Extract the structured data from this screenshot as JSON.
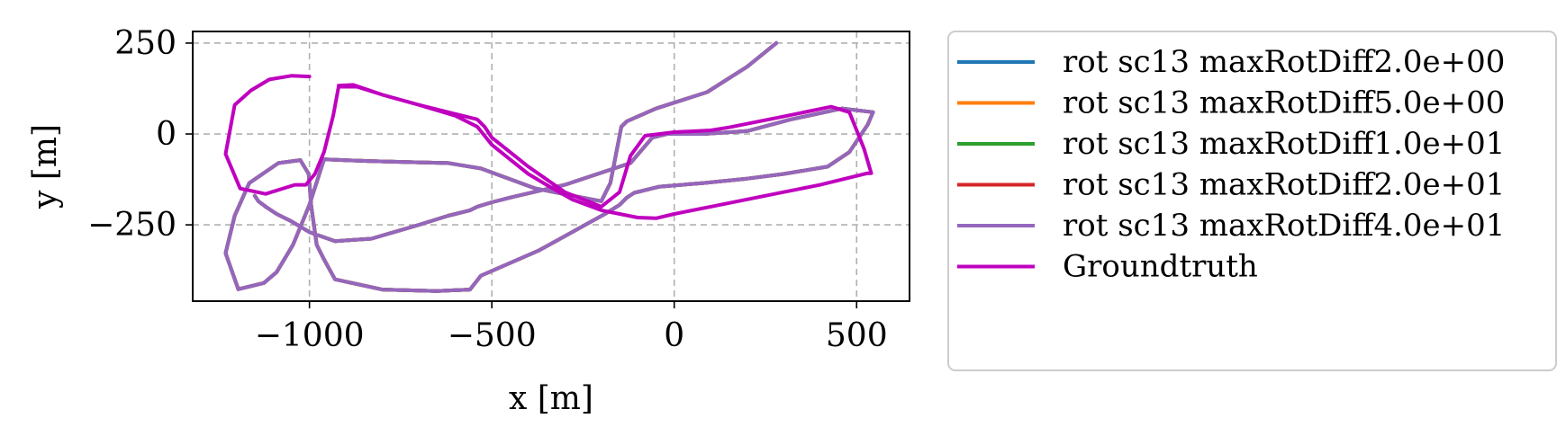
{
  "chart_data": {
    "type": "line",
    "xlabel": "x [m]",
    "ylabel": "y [m]",
    "xlim": [
      -1320,
      645
    ],
    "ylim": [
      -460,
      282
    ],
    "xticks": [
      -1000,
      -500,
      0,
      500
    ],
    "xtick_labels": [
      "−1000",
      "−500",
      "0",
      "500"
    ],
    "yticks": [
      250,
      0,
      -250
    ],
    "ytick_labels": [
      "250",
      "0",
      "−250"
    ],
    "grid": true,
    "grid_style": "dashed",
    "legend_placement": "outside-right",
    "series": [
      {
        "name": "rot sc13 maxRotDiff2.0e+00",
        "color": "#1f77b4",
        "x": [
          280,
          200,
          90,
          -50,
          -130,
          -145,
          -175,
          -200,
          -380,
          -530,
          -620,
          -700,
          -830,
          -960,
          -1000,
          -1045,
          -1090,
          -1125,
          -1195,
          -1230,
          -1205,
          -1165,
          -1085,
          -1025,
          -1002,
          -995,
          -980,
          -960,
          -930,
          -800,
          -650,
          -560,
          -530,
          -370,
          -280,
          -190,
          -150,
          -130,
          -110,
          -40,
          80,
          200,
          300,
          420,
          480,
          510,
          530,
          545,
          460,
          320,
          200,
          80,
          -20,
          -60,
          -120,
          -300,
          -450,
          -500,
          -540,
          -560,
          -620,
          -700,
          -830,
          -930,
          -1000,
          -1050,
          -1090,
          -1120,
          -1140,
          -1150
        ],
        "y": [
          250,
          185,
          115,
          70,
          35,
          20,
          -135,
          -185,
          -150,
          -95,
          -80,
          -78,
          -75,
          -70,
          -195,
          -305,
          -380,
          -410,
          -427,
          -328,
          -225,
          -135,
          -80,
          -72,
          -110,
          -200,
          -305,
          -345,
          -400,
          -428,
          -432,
          -428,
          -390,
          -320,
          -270,
          -220,
          -195,
          -175,
          -162,
          -145,
          -135,
          -123,
          -110,
          -90,
          -50,
          -5,
          25,
          60,
          70,
          40,
          8,
          0,
          0,
          -10,
          -80,
          -140,
          -175,
          -188,
          -200,
          -210,
          -225,
          -250,
          -288,
          -295,
          -270,
          -240,
          -220,
          -200,
          -185,
          -170
        ]
      },
      {
        "name": "rot sc13 maxRotDiff5.0e+00",
        "color": "#ff7f0e",
        "x": [
          280,
          200,
          90,
          -50,
          -130,
          -145,
          -175,
          -200,
          -380,
          -530,
          -620,
          -700,
          -830,
          -960,
          -1000,
          -1045,
          -1090,
          -1125,
          -1195,
          -1230,
          -1205,
          -1165,
          -1085,
          -1025,
          -1002,
          -995,
          -980,
          -960,
          -930,
          -800,
          -650,
          -560,
          -530,
          -370,
          -280,
          -190,
          -150,
          -130,
          -110,
          -40,
          80,
          200,
          300,
          420,
          480,
          510,
          530,
          545,
          460,
          320,
          200,
          80,
          -20,
          -60,
          -120,
          -300,
          -450,
          -500,
          -540,
          -560,
          -620,
          -700,
          -830,
          -930,
          -1000,
          -1050,
          -1090,
          -1120,
          -1140,
          -1150
        ],
        "y": [
          250,
          185,
          115,
          70,
          35,
          20,
          -135,
          -185,
          -150,
          -95,
          -80,
          -78,
          -75,
          -70,
          -195,
          -305,
          -380,
          -410,
          -427,
          -328,
          -225,
          -135,
          -80,
          -72,
          -110,
          -200,
          -305,
          -345,
          -400,
          -428,
          -432,
          -428,
          -390,
          -320,
          -270,
          -220,
          -195,
          -175,
          -162,
          -145,
          -135,
          -123,
          -110,
          -90,
          -50,
          -5,
          25,
          60,
          70,
          40,
          8,
          0,
          0,
          -10,
          -80,
          -140,
          -175,
          -188,
          -200,
          -210,
          -225,
          -250,
          -288,
          -295,
          -270,
          -240,
          -220,
          -200,
          -185,
          -170
        ]
      },
      {
        "name": "rot sc13 maxRotDiff1.0e+01",
        "color": "#2ca02c",
        "x": [
          280,
          200,
          90,
          -50,
          -130,
          -145,
          -175,
          -200,
          -380,
          -530,
          -620,
          -700,
          -830,
          -960,
          -1000,
          -1045,
          -1090,
          -1125,
          -1195,
          -1230,
          -1205,
          -1165,
          -1085,
          -1025,
          -1002,
          -995,
          -980,
          -960,
          -930,
          -800,
          -650,
          -560,
          -530,
          -370,
          -280,
          -190,
          -150,
          -130,
          -110,
          -40,
          80,
          200,
          300,
          420,
          480,
          510,
          530,
          545,
          460,
          320,
          200,
          80,
          -20,
          -60,
          -120,
          -300,
          -450,
          -500,
          -540,
          -560,
          -620,
          -700,
          -830,
          -930,
          -1000,
          -1050,
          -1090,
          -1120,
          -1140,
          -1150
        ],
        "y": [
          250,
          185,
          115,
          70,
          35,
          20,
          -135,
          -185,
          -150,
          -95,
          -80,
          -78,
          -75,
          -70,
          -195,
          -305,
          -380,
          -410,
          -427,
          -328,
          -225,
          -135,
          -80,
          -72,
          -110,
          -200,
          -305,
          -345,
          -400,
          -428,
          -432,
          -428,
          -390,
          -320,
          -270,
          -220,
          -195,
          -175,
          -162,
          -145,
          -135,
          -123,
          -110,
          -90,
          -50,
          -5,
          25,
          60,
          70,
          40,
          8,
          0,
          0,
          -10,
          -80,
          -140,
          -175,
          -188,
          -200,
          -210,
          -225,
          -250,
          -288,
          -295,
          -270,
          -240,
          -220,
          -200,
          -185,
          -170
        ]
      },
      {
        "name": "rot sc13 maxRotDiff2.0e+01",
        "color": "#d62728",
        "x": [
          280,
          200,
          90,
          -50,
          -130,
          -145,
          -175,
          -200,
          -380,
          -530,
          -620,
          -700,
          -830,
          -960,
          -1000,
          -1045,
          -1090,
          -1125,
          -1195,
          -1230,
          -1205,
          -1165,
          -1085,
          -1025,
          -1002,
          -995,
          -980,
          -960,
          -930,
          -800,
          -650,
          -560,
          -530,
          -370,
          -280,
          -190,
          -150,
          -130,
          -110,
          -40,
          80,
          200,
          300,
          420,
          480,
          510,
          530,
          545,
          460,
          320,
          200,
          80,
          -20,
          -60,
          -120,
          -300,
          -450,
          -500,
          -540,
          -560,
          -620,
          -700,
          -830,
          -930,
          -1000,
          -1050,
          -1090,
          -1120,
          -1140,
          -1150
        ],
        "y": [
          250,
          185,
          115,
          70,
          35,
          20,
          -135,
          -185,
          -150,
          -95,
          -80,
          -78,
          -75,
          -70,
          -195,
          -305,
          -380,
          -410,
          -427,
          -328,
          -225,
          -135,
          -80,
          -72,
          -110,
          -200,
          -305,
          -345,
          -400,
          -428,
          -432,
          -428,
          -390,
          -320,
          -270,
          -220,
          -195,
          -175,
          -162,
          -145,
          -135,
          -123,
          -110,
          -90,
          -50,
          -5,
          25,
          60,
          70,
          40,
          8,
          0,
          0,
          -10,
          -80,
          -140,
          -175,
          -188,
          -200,
          -210,
          -225,
          -250,
          -288,
          -295,
          -270,
          -240,
          -220,
          -200,
          -185,
          -170
        ]
      },
      {
        "name": "rot sc13 maxRotDiff4.0e+01",
        "color": "#9467bd",
        "x": [
          280,
          200,
          90,
          -50,
          -130,
          -145,
          -175,
          -200,
          -380,
          -530,
          -620,
          -700,
          -830,
          -960,
          -1000,
          -1045,
          -1090,
          -1125,
          -1195,
          -1230,
          -1205,
          -1165,
          -1085,
          -1025,
          -1002,
          -995,
          -980,
          -960,
          -930,
          -800,
          -650,
          -560,
          -530,
          -370,
          -280,
          -190,
          -150,
          -130,
          -110,
          -40,
          80,
          200,
          300,
          420,
          480,
          510,
          530,
          545,
          460,
          320,
          200,
          80,
          -20,
          -60,
          -120,
          -300,
          -450,
          -500,
          -540,
          -560,
          -620,
          -700,
          -830,
          -930,
          -1000,
          -1050,
          -1090,
          -1120,
          -1140,
          -1150
        ],
        "y": [
          250,
          185,
          115,
          70,
          35,
          20,
          -135,
          -185,
          -150,
          -95,
          -80,
          -78,
          -75,
          -70,
          -195,
          -305,
          -380,
          -410,
          -427,
          -328,
          -225,
          -135,
          -80,
          -72,
          -110,
          -200,
          -305,
          -345,
          -400,
          -428,
          -432,
          -428,
          -390,
          -320,
          -270,
          -220,
          -195,
          -175,
          -162,
          -145,
          -135,
          -123,
          -110,
          -90,
          -50,
          -5,
          25,
          60,
          70,
          40,
          8,
          0,
          0,
          -10,
          -80,
          -140,
          -175,
          -188,
          -200,
          -210,
          -225,
          -250,
          -288,
          -295,
          -270,
          -240,
          -220,
          -200,
          -185,
          -170
        ]
      },
      {
        "name": "Groundtruth",
        "color": "#bf00bf",
        "x": [
          -1000,
          -1050,
          -1110,
          -1160,
          -1205,
          -1230,
          -1190,
          -1120,
          -1040,
          -1010,
          -985,
          -960,
          -935,
          -920,
          -870,
          -800,
          -700,
          -600,
          -540,
          -520,
          -500,
          -450,
          -400,
          -300,
          -200,
          -150,
          -120,
          -80,
          0,
          100,
          150,
          300,
          430,
          480,
          500,
          520,
          540,
          530,
          400,
          300,
          200,
          100,
          0,
          -50,
          -100,
          -200,
          -280,
          -350,
          -400,
          -450,
          -500,
          -520,
          -540,
          -600,
          -700,
          -800,
          -850,
          -880,
          -920
        ],
        "y": [
          158,
          160,
          150,
          120,
          80,
          -55,
          -150,
          -165,
          -140,
          -140,
          -110,
          -50,
          50,
          130,
          130,
          108,
          80,
          55,
          40,
          20,
          -10,
          -50,
          -90,
          -160,
          -200,
          -160,
          -60,
          -5,
          5,
          10,
          18,
          48,
          75,
          60,
          10,
          -40,
          -108,
          -108,
          -140,
          -160,
          -180,
          -200,
          -220,
          -232,
          -230,
          -210,
          -180,
          -140,
          -110,
          -70,
          -30,
          -5,
          20,
          50,
          80,
          108,
          125,
          135,
          133
        ]
      }
    ]
  }
}
